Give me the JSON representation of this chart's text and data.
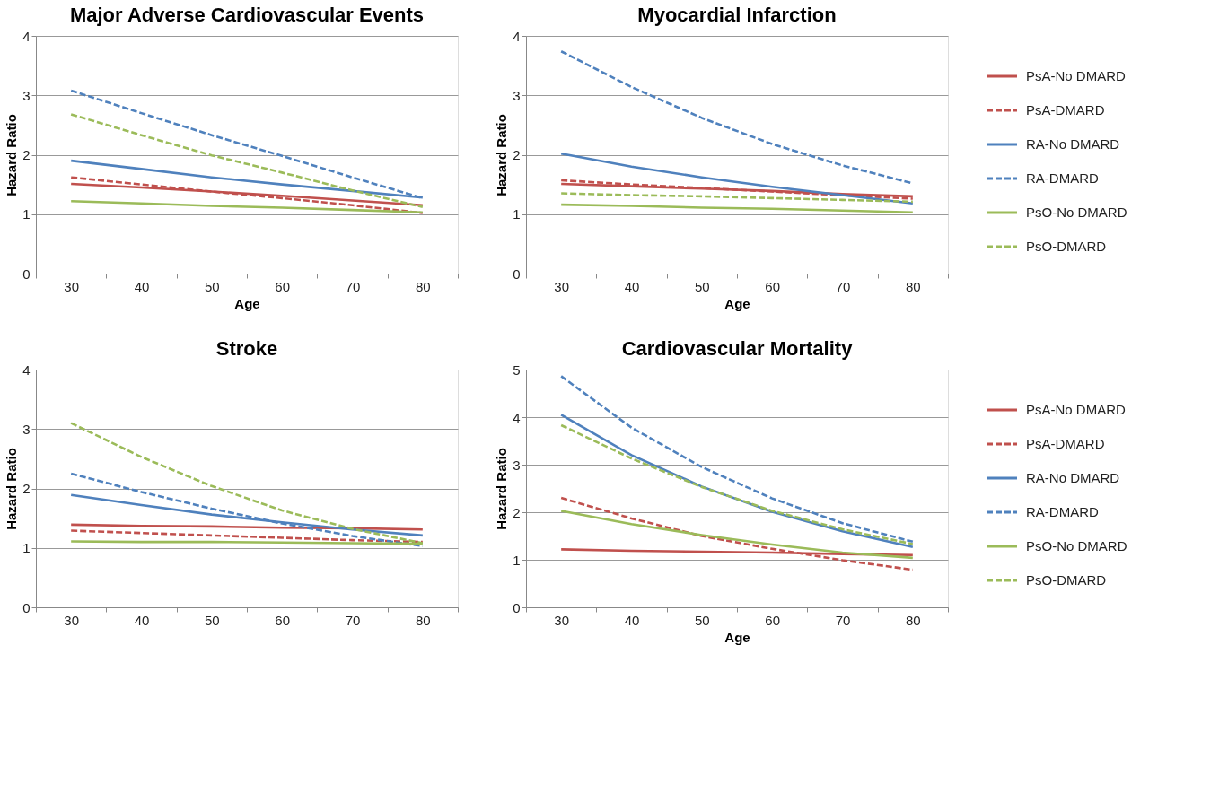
{
  "chart_data": [
    {
      "type": "line",
      "title": "Major Adverse Cardiovascular Events",
      "xlabel": "Age",
      "ylabel": "Hazard Ratio",
      "categories": [
        "30",
        "40",
        "50",
        "60",
        "70",
        "80"
      ],
      "ylim": [
        0,
        4
      ],
      "yticks": [
        0,
        1,
        2,
        3,
        4
      ],
      "grid": "y",
      "legend": "right",
      "series": [
        {
          "name": "PsA-No DMARD",
          "color": "#c0504d",
          "line_style": "solid",
          "values": [
            1.51,
            1.45,
            1.38,
            1.31,
            1.23,
            1.15
          ]
        },
        {
          "name": "PsA-DMARD",
          "color": "#c0504d",
          "line_style": "dashed",
          "values": [
            1.62,
            1.5,
            1.38,
            1.27,
            1.15,
            1.02
          ]
        },
        {
          "name": "RA-No DMARD",
          "color": "#4f81bd",
          "line_style": "solid",
          "values": [
            1.9,
            1.76,
            1.62,
            1.5,
            1.39,
            1.28
          ]
        },
        {
          "name": "RA-DMARD",
          "color": "#4f81bd",
          "line_style": "dashed",
          "values": [
            3.08,
            2.7,
            2.33,
            1.98,
            1.62,
            1.27
          ]
        },
        {
          "name": "PsO-No DMARD",
          "color": "#9bbb59",
          "line_style": "solid",
          "values": [
            1.22,
            1.18,
            1.14,
            1.11,
            1.07,
            1.03
          ]
        },
        {
          "name": "PsO-DMARD",
          "color": "#9bbb59",
          "line_style": "dashed",
          "values": [
            2.68,
            2.33,
            1.99,
            1.7,
            1.4,
            1.12
          ]
        }
      ]
    },
    {
      "type": "line",
      "title": "Myocardial Infarction",
      "xlabel": "Age",
      "ylabel": "Hazard Ratio",
      "categories": [
        "30",
        "40",
        "50",
        "60",
        "70",
        "80"
      ],
      "ylim": [
        0,
        4
      ],
      "yticks": [
        0,
        1,
        2,
        3,
        4
      ],
      "grid": "y",
      "legend": "right",
      "series": [
        {
          "name": "PsA-No DMARD",
          "color": "#c0504d",
          "line_style": "solid",
          "values": [
            1.51,
            1.47,
            1.43,
            1.39,
            1.34,
            1.3
          ]
        },
        {
          "name": "PsA-DMARD",
          "color": "#c0504d",
          "line_style": "dashed",
          "values": [
            1.57,
            1.5,
            1.44,
            1.38,
            1.32,
            1.26
          ]
        },
        {
          "name": "RA-No DMARD",
          "color": "#4f81bd",
          "line_style": "solid",
          "values": [
            2.02,
            1.8,
            1.62,
            1.46,
            1.32,
            1.18
          ]
        },
        {
          "name": "RA-DMARD",
          "color": "#4f81bd",
          "line_style": "dashed",
          "values": [
            3.74,
            3.14,
            2.62,
            2.18,
            1.82,
            1.52
          ]
        },
        {
          "name": "PsO-No DMARD",
          "color": "#9bbb59",
          "line_style": "solid",
          "values": [
            1.16,
            1.14,
            1.11,
            1.09,
            1.06,
            1.03
          ]
        },
        {
          "name": "PsO-DMARD",
          "color": "#9bbb59",
          "line_style": "dashed",
          "values": [
            1.35,
            1.32,
            1.3,
            1.27,
            1.24,
            1.21
          ]
        }
      ]
    },
    {
      "type": "line",
      "title": "Stroke",
      "ylabel": "Hazard Ratio",
      "categories": [
        "30",
        "40",
        "50",
        "60",
        "70",
        "80"
      ],
      "ylim": [
        0,
        4
      ],
      "yticks": [
        0,
        1,
        2,
        3,
        4
      ],
      "grid": "y",
      "legend": "right",
      "series": [
        {
          "name": "PsA-No DMARD",
          "color": "#c0504d",
          "line_style": "solid",
          "values": [
            1.39,
            1.37,
            1.36,
            1.34,
            1.33,
            1.31
          ]
        },
        {
          "name": "PsA-DMARD",
          "color": "#c0504d",
          "line_style": "dashed",
          "values": [
            1.29,
            1.25,
            1.21,
            1.17,
            1.13,
            1.1
          ]
        },
        {
          "name": "RA-No DMARD",
          "color": "#4f81bd",
          "line_style": "solid",
          "values": [
            1.89,
            1.72,
            1.56,
            1.43,
            1.31,
            1.21
          ]
        },
        {
          "name": "RA-DMARD",
          "color": "#4f81bd",
          "line_style": "dashed",
          "values": [
            2.25,
            1.94,
            1.66,
            1.41,
            1.2,
            1.03
          ]
        },
        {
          "name": "PsO-No DMARD",
          "color": "#9bbb59",
          "line_style": "solid",
          "values": [
            1.11,
            1.1,
            1.1,
            1.09,
            1.08,
            1.07
          ]
        },
        {
          "name": "PsO-DMARD",
          "color": "#9bbb59",
          "line_style": "dashed",
          "values": [
            3.1,
            2.53,
            2.04,
            1.63,
            1.32,
            1.08
          ]
        }
      ]
    },
    {
      "type": "line",
      "title": "Cardiovascular Mortality",
      "xlabel": "Age",
      "ylabel": "Hazard Ratio",
      "categories": [
        "30",
        "40",
        "50",
        "60",
        "70",
        "80"
      ],
      "ylim": [
        0,
        5
      ],
      "yticks": [
        0,
        1,
        2,
        3,
        4,
        5
      ],
      "grid": "y",
      "legend": "right",
      "series": [
        {
          "name": "PsA-No DMARD",
          "color": "#c0504d",
          "line_style": "solid",
          "values": [
            1.22,
            1.19,
            1.17,
            1.15,
            1.12,
            1.1
          ]
        },
        {
          "name": "PsA-DMARD",
          "color": "#c0504d",
          "line_style": "dashed",
          "values": [
            2.3,
            1.87,
            1.5,
            1.23,
            0.99,
            0.79
          ]
        },
        {
          "name": "RA-No DMARD",
          "color": "#4f81bd",
          "line_style": "solid",
          "values": [
            4.05,
            3.2,
            2.54,
            2.01,
            1.6,
            1.27
          ]
        },
        {
          "name": "RA-DMARD",
          "color": "#4f81bd",
          "line_style": "dashed",
          "values": [
            4.86,
            3.78,
            2.95,
            2.29,
            1.77,
            1.38
          ]
        },
        {
          "name": "PsO-No DMARD",
          "color": "#9bbb59",
          "line_style": "solid",
          "values": [
            2.03,
            1.75,
            1.52,
            1.32,
            1.15,
            1.04
          ]
        },
        {
          "name": "PsO-DMARD",
          "color": "#9bbb59",
          "line_style": "dashed",
          "values": [
            3.83,
            3.13,
            2.53,
            2.03,
            1.64,
            1.33
          ]
        }
      ]
    }
  ]
}
